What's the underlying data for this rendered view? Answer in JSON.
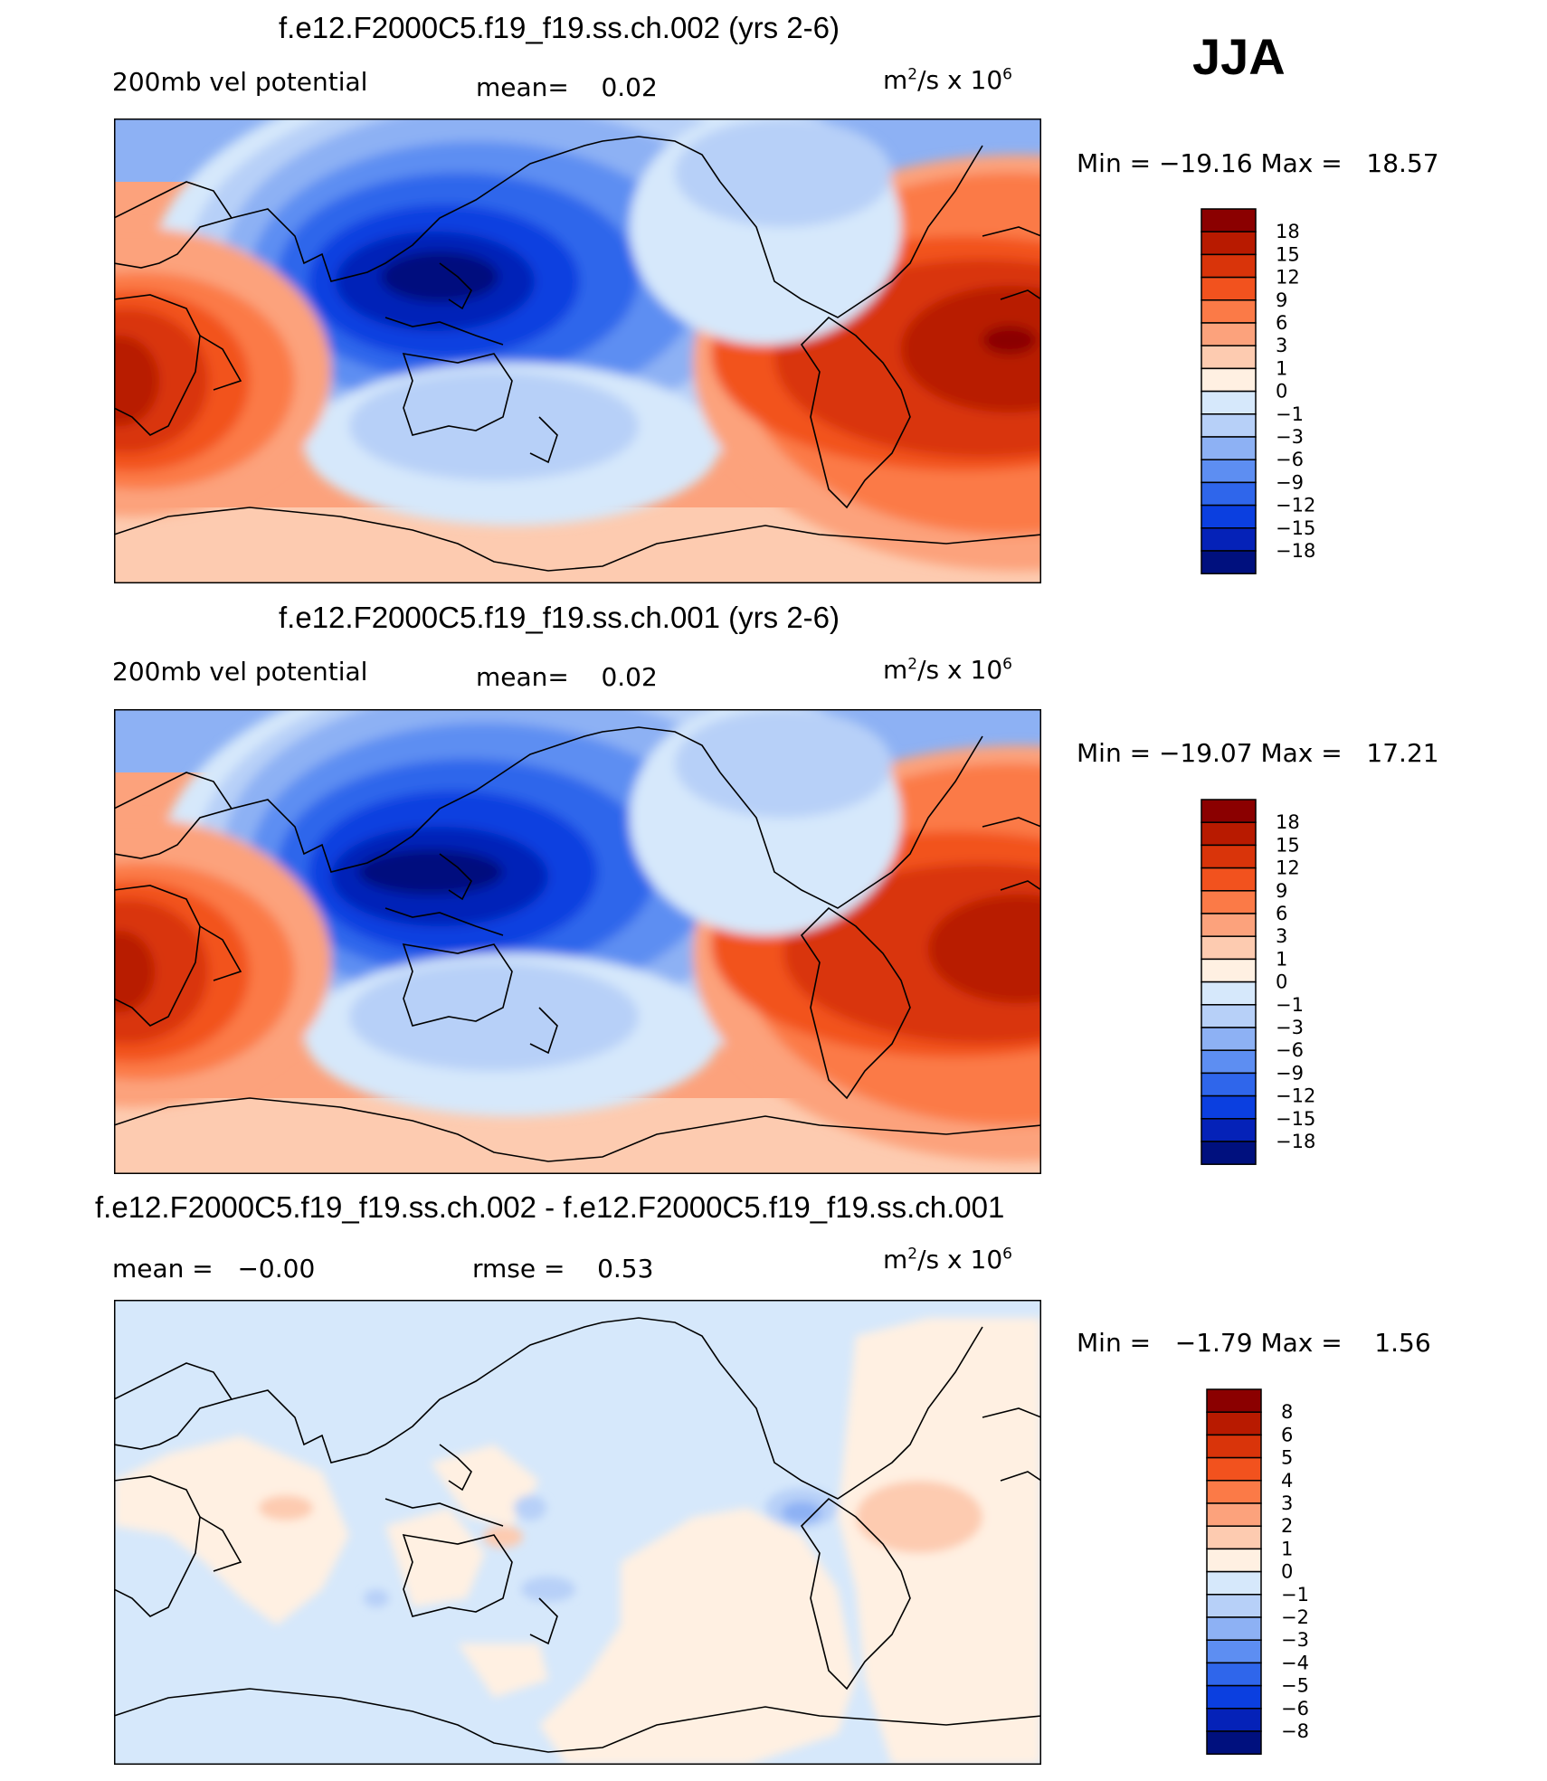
{
  "season": "JJA",
  "panels": [
    {
      "title": "f.e12.F2000C5.f19_f19.ss.ch.002 (yrs 2-6)",
      "left_label": "200mb vel potential",
      "center_label": "mean=    0.02",
      "units": "m²/s x 10⁶",
      "minmax": "Min = −19.16 Max =   18.57",
      "colorbar": {
        "levels": [
          "18",
          "15",
          "12",
          "9",
          "6",
          "3",
          "1",
          "0",
          "−1",
          "−3",
          "−6",
          "−9",
          "−12",
          "−15",
          "−18"
        ],
        "colors": [
          "#8b0000",
          "#b81a00",
          "#d9340a",
          "#f2521e",
          "#fb7a47",
          "#fca27c",
          "#fdcbb0",
          "#fff0e2",
          "#d6e8fb",
          "#b7d0f8",
          "#8db1f4",
          "#5d8ef2",
          "#2f66eb",
          "#0b3fe0",
          "#0522b8",
          "#00107e"
        ]
      }
    },
    {
      "title": "f.e12.F2000C5.f19_f19.ss.ch.001 (yrs 2-6)",
      "left_label": "200mb vel potential",
      "center_label": "mean=    0.02",
      "units": "m²/s x 10⁶",
      "minmax": "Min = −19.07 Max =   17.21",
      "colorbar": {
        "levels": [
          "18",
          "15",
          "12",
          "9",
          "6",
          "3",
          "1",
          "0",
          "−1",
          "−3",
          "−6",
          "−9",
          "−12",
          "−15",
          "−18"
        ],
        "colors": [
          "#8b0000",
          "#b81a00",
          "#d9340a",
          "#f2521e",
          "#fb7a47",
          "#fca27c",
          "#fdcbb0",
          "#fff0e2",
          "#d6e8fb",
          "#b7d0f8",
          "#8db1f4",
          "#5d8ef2",
          "#2f66eb",
          "#0b3fe0",
          "#0522b8",
          "#00107e"
        ]
      }
    },
    {
      "title": "f.e12.F2000C5.f19_f19.ss.ch.002 - f.e12.F2000C5.f19_f19.ss.ch.001",
      "left_label": "mean =   −0.00",
      "center_label": "rmse =    0.53",
      "units": "m²/s x 10⁶",
      "minmax": "Min =   −1.79 Max =    1.56",
      "colorbar": {
        "levels": [
          "8",
          "6",
          "5",
          "4",
          "3",
          "2",
          "1",
          "0",
          "−1",
          "−2",
          "−3",
          "−4",
          "−5",
          "−6",
          "−8"
        ],
        "colors": [
          "#8b0000",
          "#b81a00",
          "#d9340a",
          "#f2521e",
          "#fb7a47",
          "#fca27c",
          "#fdcbb0",
          "#fff0e2",
          "#d6e8fb",
          "#b7d0f8",
          "#8db1f4",
          "#5d8ef2",
          "#2f66eb",
          "#0b3fe0",
          "#0522b8",
          "#00107e"
        ]
      }
    }
  ]
}
